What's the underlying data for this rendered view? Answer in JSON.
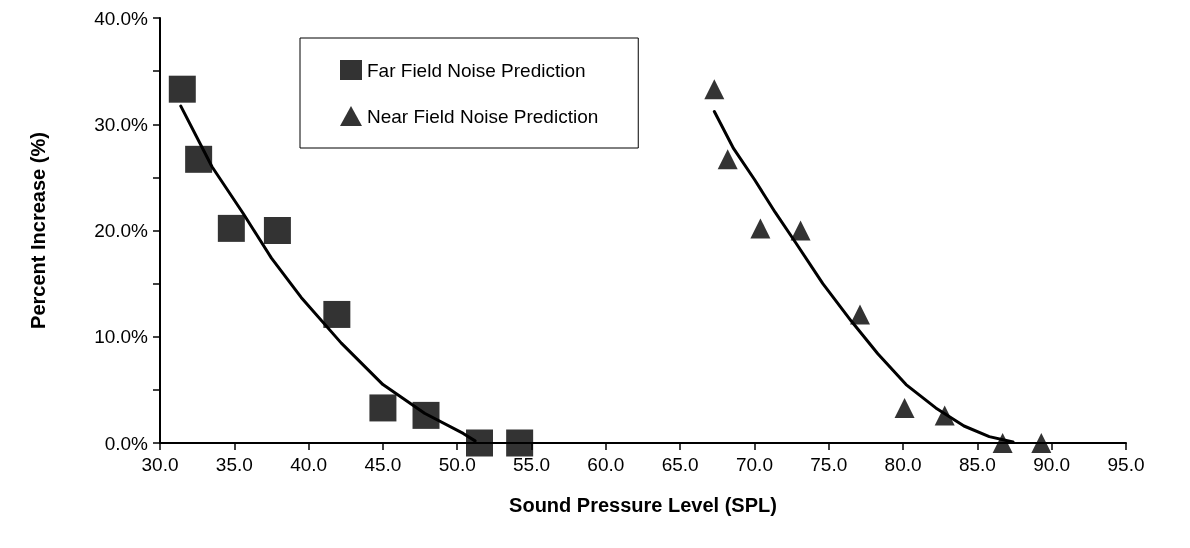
{
  "chart_data": {
    "type": "scatter",
    "xlabel": "Sound Pressure Level (SPL)",
    "ylabel": "Percent Increase (%)",
    "xlim": [
      30,
      95
    ],
    "xticks": [
      {
        "value": 30,
        "label": "30.0"
      },
      {
        "value": 35,
        "label": "35.0"
      },
      {
        "value": 40,
        "label": "40.0"
      },
      {
        "value": 45,
        "label": "45.0"
      },
      {
        "value": 50,
        "label": "50.0"
      },
      {
        "value": 55,
        "label": "55.0"
      },
      {
        "value": 60,
        "label": "60.0"
      },
      {
        "value": 65,
        "label": "65.0"
      },
      {
        "value": 70,
        "label": "70.0"
      },
      {
        "value": 75,
        "label": "75.0"
      },
      {
        "value": 80,
        "label": "80.0"
      },
      {
        "value": 85,
        "label": "85.0"
      },
      {
        "value": 90,
        "label": "90.0"
      },
      {
        "value": 95,
        "label": "95.0"
      }
    ],
    "ylim": [
      0,
      40
    ],
    "yticks": [
      {
        "value": 0,
        "label": "0.0%"
      },
      {
        "value": 5,
        "label": null
      },
      {
        "value": 10,
        "label": "10.0%"
      },
      {
        "value": 15,
        "label": null
      },
      {
        "value": 20,
        "label": "20.0%"
      },
      {
        "value": 25,
        "label": null
      },
      {
        "value": 30,
        "label": "30.0%"
      },
      {
        "value": 35,
        "label": null
      },
      {
        "value": 40,
        "label": "40.0%"
      }
    ],
    "grid": false,
    "legend": "top left",
    "series": [
      {
        "name": "Far Field Noise Prediction",
        "color": "#000000",
        "marker": "square",
        "x": [
          31.5,
          32.6,
          34.8,
          37.9,
          41.9,
          45.0,
          47.9,
          51.5,
          54.2
        ],
        "values": [
          33.3,
          26.7,
          20.2,
          20.0,
          12.1,
          3.3,
          2.6,
          0,
          0
        ]
      },
      {
        "name": "Near Field Noise Prediction",
        "color": "#000000",
        "marker": "triangle",
        "x": [
          67.3,
          68.2,
          70.4,
          73.1,
          77.1,
          80.1,
          82.8,
          86.7,
          89.3
        ],
        "values": [
          33.3,
          26.7,
          20.2,
          20.0,
          12.1,
          3.3,
          2.6,
          0,
          0
        ]
      },
      {
        "type": "line",
        "color": "#000000",
        "marker": "none",
        "x": [
          31.4,
          33.5,
          35.6,
          37.5,
          39.5,
          42.2,
          45.0,
          47.8,
          50.4,
          51.2
        ],
        "values": [
          31.7,
          26.0,
          21.6,
          17.4,
          13.7,
          9.4,
          5.5,
          2.8,
          0.9,
          0.2
        ]
      },
      {
        "type": "line",
        "color": "#000000",
        "marker": "none",
        "x": [
          67.3,
          68.6,
          70.0,
          71.4,
          72.8,
          74.6,
          76.5,
          78.3,
          80.2,
          82.2,
          84.1,
          85.8,
          87.4
        ],
        "values": [
          31.2,
          27.7,
          24.8,
          21.7,
          18.8,
          15.0,
          11.5,
          8.4,
          5.5,
          3.3,
          1.6,
          0.6,
          0.1
        ]
      }
    ]
  }
}
